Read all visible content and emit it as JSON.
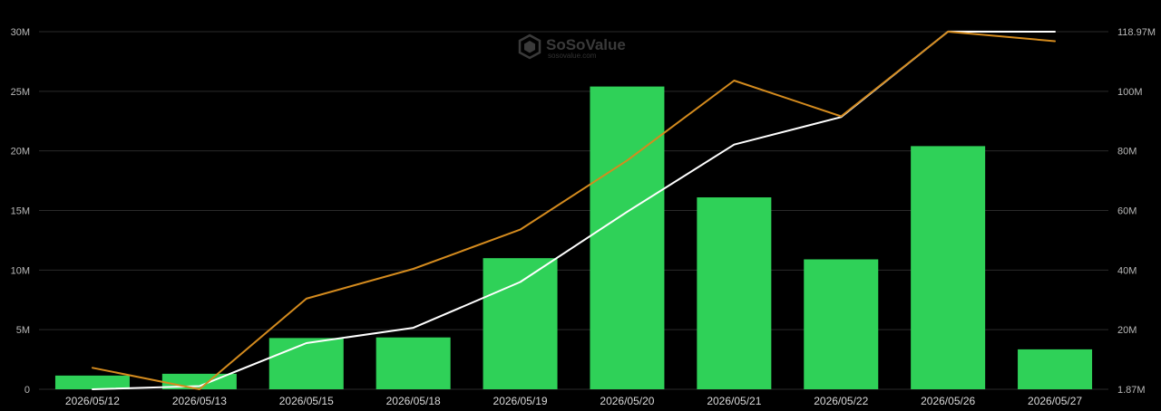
{
  "watermark": {
    "brand": "SoSoValue",
    "url": "sosovalue.com"
  },
  "colors": {
    "background": "#000000",
    "bar": "#2fd158",
    "line_primary": "#ffffff",
    "line_secondary": "#d48b1e",
    "grid": "#2a2a2a"
  },
  "chart_data": {
    "type": "bar",
    "title": "",
    "grid": true,
    "legend": "none",
    "categories": [
      "2026/05/12",
      "2026/05/13",
      "2026/05/15",
      "2026/05/18",
      "2026/05/19",
      "2026/05/20",
      "2026/05/21",
      "2026/05/22",
      "2026/05/26",
      "2026/05/27"
    ],
    "left_axis": {
      "ylim": [
        0,
        30000000
      ],
      "tick_labels": [
        "0",
        "5M",
        "10M",
        "15M",
        "20M",
        "25M",
        "30M"
      ]
    },
    "right_axis": {
      "ylim": [
        1870000,
        118970000
      ],
      "tick_labels": [
        "1.87M",
        "20M",
        "40M",
        "60M",
        "80M",
        "100M",
        "118.97M"
      ]
    },
    "series": [
      {
        "type": "bar",
        "axis": "left",
        "color": "#2fd158",
        "values": [
          1150000,
          1300000,
          4300000,
          4350000,
          11000000,
          25400000,
          16100000,
          10900000,
          20400000,
          3350000
        ]
      },
      {
        "type": "line",
        "axis": "right",
        "color": "#ffffff",
        "values": [
          1870000,
          2900000,
          17000000,
          22000000,
          37000000,
          60000000,
          82000000,
          91000000,
          119000000,
          118970000
        ]
      },
      {
        "type": "line",
        "axis": "left",
        "color": "#d48b1e",
        "values": [
          1800000,
          0,
          7600000,
          10100000,
          13400000,
          19200000,
          25900000,
          22900000,
          30000000,
          29200000
        ]
      }
    ]
  }
}
